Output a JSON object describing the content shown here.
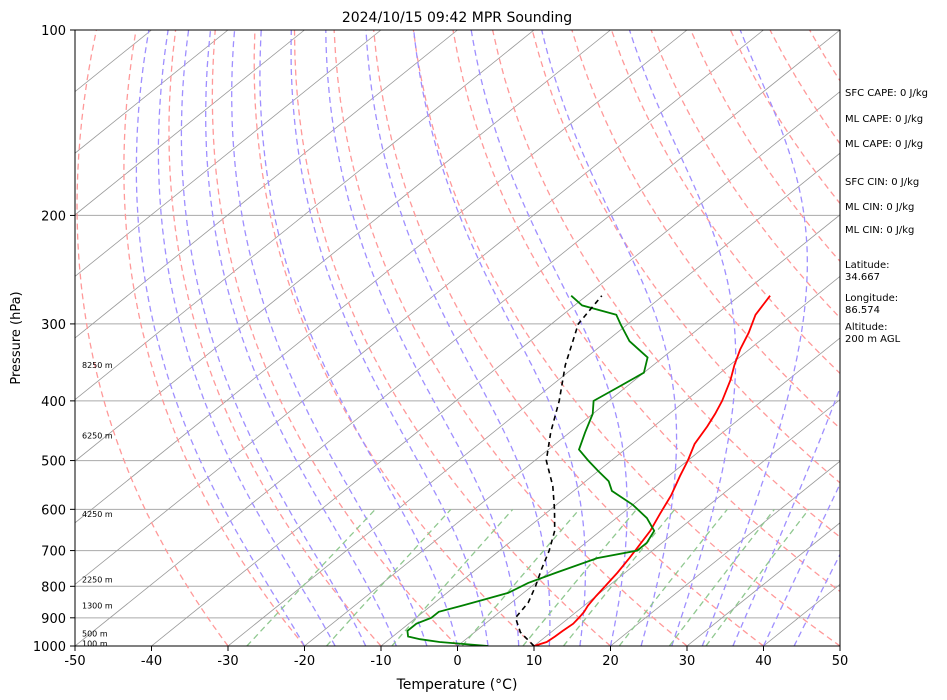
{
  "chart_data": {
    "type": "line",
    "title": "2024/10/15 09:42 MPR Sounding",
    "xlabel": "Temperature (°C)",
    "ylabel": "Pressure (hPa)",
    "xlim": [
      -50,
      50
    ],
    "ylim": [
      1000,
      100
    ],
    "y_scale": "log",
    "skew": "skew-T",
    "x_ticks": [
      -50,
      -40,
      -30,
      -20,
      -10,
      0,
      10,
      20,
      30,
      40,
      50
    ],
    "y_ticks": [
      1000,
      900,
      800,
      700,
      600,
      500,
      400,
      300,
      200,
      100
    ],
    "grid": "horizontal",
    "height_labels": [
      {
        "p": 990,
        "text": "100 m"
      },
      {
        "p": 955,
        "text": "500 m"
      },
      {
        "p": 860,
        "text": "1300 m"
      },
      {
        "p": 780,
        "text": "2250 m"
      },
      {
        "p": 610,
        "text": "4250 m"
      },
      {
        "p": 455,
        "text": "6250 m"
      },
      {
        "p": 350,
        "text": "8250 m"
      }
    ],
    "series": [
      {
        "color": "#ff0000",
        "points": [
          [
            1000,
            10
          ],
          [
            985,
            11
          ],
          [
            965,
            11.2
          ],
          [
            945,
            11.3
          ],
          [
            920,
            11.5
          ],
          [
            900,
            11.3
          ],
          [
            880,
            11
          ],
          [
            860,
            10.5
          ],
          [
            830,
            10
          ],
          [
            800,
            9.6
          ],
          [
            760,
            9
          ],
          [
            720,
            8.2
          ],
          [
            690,
            7.5
          ],
          [
            650,
            6.5
          ],
          [
            610,
            5
          ],
          [
            570,
            3.5
          ],
          [
            530,
            1.5
          ],
          [
            500,
            0
          ],
          [
            470,
            -1.8
          ],
          [
            440,
            -3
          ],
          [
            420,
            -4
          ],
          [
            400,
            -5.2
          ],
          [
            370,
            -7.5
          ],
          [
            350,
            -9.4
          ],
          [
            330,
            -11.2
          ],
          [
            310,
            -12.8
          ],
          [
            290,
            -14.8
          ],
          [
            270,
            -16
          ]
        ]
      },
      {
        "color": "#008000",
        "points": [
          [
            1000,
            4
          ],
          [
            985,
            -3
          ],
          [
            975,
            -6
          ],
          [
            965,
            -8
          ],
          [
            945,
            -9
          ],
          [
            920,
            -9
          ],
          [
            900,
            -8
          ],
          [
            880,
            -8
          ],
          [
            860,
            -6
          ],
          [
            840,
            -4
          ],
          [
            820,
            -2
          ],
          [
            790,
            -1
          ],
          [
            760,
            1
          ],
          [
            720,
            4
          ],
          [
            700,
            8
          ],
          [
            680,
            8
          ],
          [
            650,
            7
          ],
          [
            620,
            4
          ],
          [
            590,
            0
          ],
          [
            560,
            -5
          ],
          [
            540,
            -7
          ],
          [
            520,
            -10
          ],
          [
            500,
            -13
          ],
          [
            480,
            -16
          ],
          [
            450,
            -18
          ],
          [
            420,
            -20
          ],
          [
            400,
            -22
          ],
          [
            380,
            -21
          ],
          [
            360,
            -20
          ],
          [
            340,
            -22
          ],
          [
            320,
            -27
          ],
          [
            300,
            -31
          ],
          [
            290,
            -33
          ],
          [
            280,
            -39
          ],
          [
            270,
            -42
          ]
        ]
      },
      {
        "color": "#000000",
        "dashed": true,
        "points": [
          [
            1000,
            10
          ],
          [
            950,
            6
          ],
          [
            900,
            3
          ],
          [
            850,
            2.2
          ],
          [
            800,
            0.5
          ],
          [
            750,
            -1.5
          ],
          [
            700,
            -3.5
          ],
          [
            650,
            -6
          ],
          [
            600,
            -9.5
          ],
          [
            550,
            -13.5
          ],
          [
            500,
            -18.5
          ],
          [
            450,
            -22.5
          ],
          [
            400,
            -26.5
          ],
          [
            350,
            -31.5
          ],
          [
            300,
            -36.5
          ],
          [
            270,
            -38
          ]
        ]
      }
    ]
  },
  "side_panel": [
    {
      "id": "sfc-cape",
      "text": "SFC CAPE: 0 J/kg",
      "p": 130
    },
    {
      "id": "ml-cape-1",
      "text": "ML CAPE: 0 J/kg",
      "p": 143
    },
    {
      "id": "ml-cape-2",
      "text": "ML CAPE: 0 J/kg",
      "p": 157
    },
    {
      "id": "sfc-cin",
      "text": "SFC CIN: 0 J/kg",
      "p": 181
    },
    {
      "id": "ml-cin-1",
      "text": "ML CIN: 0 J/kg",
      "p": 199
    },
    {
      "id": "ml-cin-2",
      "text": "ML CIN: 0 J/kg",
      "p": 217
    },
    {
      "id": "latitude",
      "text": "Latitude:\n34.667",
      "p": 247
    },
    {
      "id": "longitude",
      "text": "Longitude:\n86.574",
      "p": 280
    },
    {
      "id": "altitude",
      "text": "Altitude:\n200 m AGL",
      "p": 312
    }
  ],
  "colors": {
    "temperature": "#ff0000",
    "dewpoint": "#008000",
    "parcel": "#000000",
    "dry_adiabat": "#ff9999",
    "moist_adiabat": "#9f8fff",
    "mixing_ratio": "#90c890",
    "isotherm": "#999999"
  }
}
